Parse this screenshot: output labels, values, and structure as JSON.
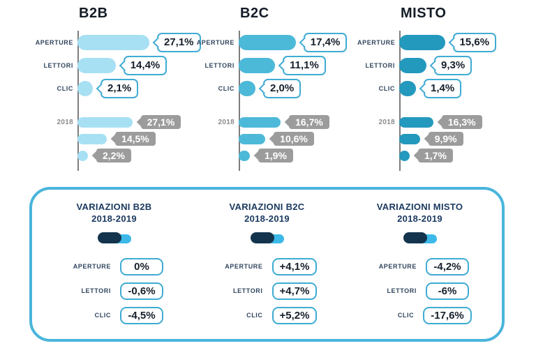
{
  "colors": {
    "b2b_bar": "#a7e0f3",
    "b2c_bar": "#4db9d9",
    "misto_bar": "#2399be",
    "callout_border": "#3fabd4",
    "gray_callout": "#9c9c9c",
    "box_border": "#4ab5dc",
    "navy_text": "#1b3a60",
    "toggle_dark": "#14344d",
    "toggle_light": "#3cb9e9",
    "axis_gray": "#7d7d7d"
  },
  "icons": {
    "toggle": "comparison-toggle-icon"
  },
  "chart_data": {
    "type": "bar",
    "orientation": "horizontal",
    "unit": "%",
    "grid": false,
    "legend": false,
    "columns": [
      {
        "title": "B2B",
        "bar_color": "#a7e0f3",
        "categories": [
          "APERTURE",
          "LETTORI",
          "CLIC"
        ],
        "current": {
          "values": [
            27.1,
            14.4,
            2.1
          ],
          "labels": [
            "27,1%",
            "14,4%",
            "2,1%"
          ]
        },
        "previous": {
          "year_label": "2018",
          "values": [
            27.1,
            14.5,
            2.2
          ],
          "labels": [
            "27,1%",
            "14,5%",
            "2,2%"
          ]
        },
        "variations": {
          "title": "VARIAZIONI B2B",
          "subtitle": "2018-2019",
          "rows": [
            {
              "label": "APERTURE",
              "value": "0%"
            },
            {
              "label": "LETTORI",
              "value": "-0,6%"
            },
            {
              "label": "CLIC",
              "value": "-4,5%"
            }
          ]
        }
      },
      {
        "title": "B2C",
        "bar_color": "#4db9d9",
        "categories": [
          "APERTURE",
          "LETTORI",
          "CLIC"
        ],
        "current": {
          "values": [
            17.4,
            11.1,
            2.0
          ],
          "labels": [
            "17,4%",
            "11,1%",
            "2,0%"
          ]
        },
        "previous": {
          "year_label": "2018",
          "values": [
            16.7,
            10.6,
            1.9
          ],
          "labels": [
            "16,7%",
            "10,6%",
            "1,9%"
          ]
        },
        "variations": {
          "title": "VARIAZIONI B2C",
          "subtitle": "2018-2019",
          "rows": [
            {
              "label": "APERTURE",
              "value": "+4,1%"
            },
            {
              "label": "LETTORI",
              "value": "+4,7%"
            },
            {
              "label": "CLIC",
              "value": "+5,2%"
            }
          ]
        }
      },
      {
        "title": "MISTO",
        "bar_color": "#2399be",
        "categories": [
          "APERTURE",
          "LETTORI",
          "CLIC"
        ],
        "current": {
          "values": [
            15.6,
            9.3,
            1.4
          ],
          "labels": [
            "15,6%",
            "9,3%",
            "1,4%"
          ]
        },
        "previous": {
          "year_label": "2018",
          "values": [
            16.3,
            9.9,
            1.7
          ],
          "labels": [
            "16,3%",
            "9,9%",
            "1,7%"
          ]
        },
        "variations": {
          "title": "VARIAZIONI MISTO",
          "subtitle": "2018-2019",
          "rows": [
            {
              "label": "APERTURE",
              "value": "-4,2%"
            },
            {
              "label": "LETTORI",
              "value": "-6%"
            },
            {
              "label": "CLIC",
              "value": "-17,6%"
            }
          ]
        }
      }
    ]
  }
}
